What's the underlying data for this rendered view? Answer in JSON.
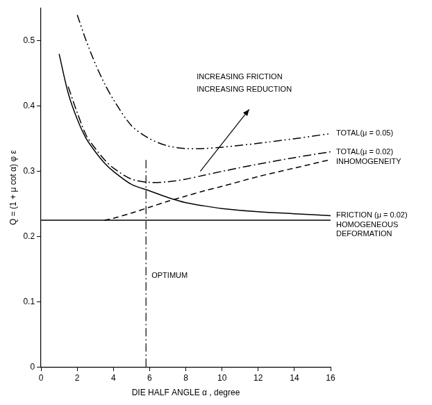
{
  "chart_data": {
    "type": "line",
    "x_label": "DIE HALF ANGLE α , degree",
    "y_label": "Q = (1 + μ cot α) φ ε",
    "x": [
      0,
      1,
      1.5,
      2,
      2.5,
      3,
      3.5,
      4,
      5,
      6,
      7,
      8,
      9,
      10,
      12,
      14,
      16
    ],
    "series": [
      {
        "name": "TOTAL(μ = 0.05)",
        "color": "#000000",
        "line_style": "dashdotdot",
        "values": [
          null,
          null,
          null,
          0.54,
          0.5,
          0.465,
          0.435,
          0.41,
          0.37,
          0.35,
          0.339,
          0.335,
          0.335,
          0.337,
          0.343,
          0.35,
          0.358
        ]
      },
      {
        "name": "TOTAL(μ = 0.02)",
        "color": "#000000",
        "line_style": "dashdot",
        "values": [
          null,
          null,
          0.43,
          0.39,
          0.355,
          0.335,
          0.318,
          0.305,
          0.288,
          0.283,
          0.284,
          0.288,
          0.294,
          0.3,
          0.311,
          0.321,
          0.33
        ]
      },
      {
        "name": "INHOMOGENEITY",
        "color": "#000000",
        "line_style": "dashed",
        "values": [
          null,
          null,
          null,
          null,
          null,
          null,
          0.225,
          0.228,
          0.236,
          0.245,
          0.254,
          0.262,
          0.27,
          0.277,
          0.292,
          0.305,
          0.318
        ]
      },
      {
        "name": "FRICTION (μ = 0.02)",
        "color": "#000000",
        "line_style": "solid",
        "values": [
          null,
          0.48,
          0.42,
          0.38,
          0.35,
          0.33,
          0.313,
          0.3,
          0.28,
          0.27,
          0.26,
          0.252,
          0.247,
          0.243,
          0.238,
          0.235,
          0.232
        ]
      },
      {
        "name": "HOMOGENEOUS DEFORMATION",
        "color": "#000000",
        "line_style": "solid",
        "values": [
          0.225,
          0.225,
          0.225,
          0.225,
          0.225,
          0.225,
          0.225,
          0.225,
          0.225,
          0.225,
          0.225,
          0.225,
          0.225,
          0.225,
          0.225,
          0.225,
          0.225
        ]
      }
    ],
    "xlim": [
      0,
      16
    ],
    "xticks": [
      0,
      2,
      4,
      6,
      8,
      10,
      12,
      14,
      16
    ],
    "ylim": [
      0,
      0.55
    ],
    "yticks": [
      0,
      0.1,
      0.2,
      0.3,
      0.4,
      0.5
    ],
    "grid": false,
    "annotations": [
      {
        "text": [
          "OPTIMUM"
        ],
        "x": 5.8,
        "y": [
          0.14
        ],
        "line_x": 5.8,
        "line_y": [
          0,
          0.32
        ]
      },
      {
        "text": [
          "INCREASING FRICTION",
          "INCREASING REDUCTION"
        ],
        "x": 8.6,
        "y": [
          0.445,
          0.425
        ],
        "arrow": {
          "from": [
            8.8,
            0.3
          ],
          "to": [
            11.5,
            0.395
          ]
        }
      }
    ]
  }
}
